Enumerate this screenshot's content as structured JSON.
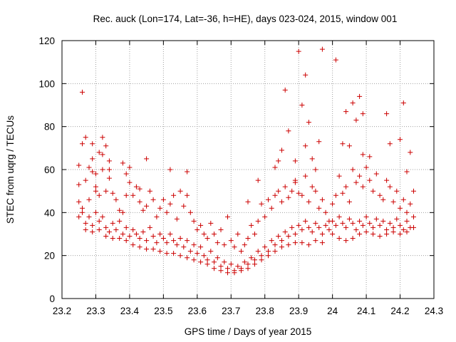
{
  "chart_data": {
    "type": "scatter",
    "title": "Rec. auck (Lon=174, Lat=-36, h=HE), days 023-024, 2015, window 001",
    "xlabel": "GPS time / Days of year 2015",
    "ylabel": "STEC from uqrg / TECUs",
    "xlim": [
      23.2,
      24.3
    ],
    "ylim": [
      0,
      120
    ],
    "xticks": [
      "23.2",
      "23.3",
      "23.4",
      "23.5",
      "23.6",
      "23.7",
      "23.8",
      "23.9",
      "24",
      "24.1",
      "24.2",
      "24.3"
    ],
    "yticks": [
      "0",
      "20",
      "40",
      "60",
      "80",
      "100",
      "120"
    ],
    "grid": true,
    "marker": "+",
    "marker_color": "#cc0000",
    "series": [
      {
        "name": "",
        "points": [
          [
            23.25,
            62
          ],
          [
            23.25,
            53
          ],
          [
            23.26,
            96
          ],
          [
            23.26,
            72
          ],
          [
            23.27,
            75
          ],
          [
            23.28,
            61
          ],
          [
            23.29,
            72
          ],
          [
            23.29,
            65
          ],
          [
            23.3,
            52
          ],
          [
            23.31,
            68
          ],
          [
            23.32,
            67
          ],
          [
            23.32,
            75
          ],
          [
            23.33,
            71
          ],
          [
            23.34,
            56
          ],
          [
            23.34,
            64
          ],
          [
            23.38,
            63
          ],
          [
            23.39,
            58
          ],
          [
            23.4,
            61
          ],
          [
            23.43,
            51
          ],
          [
            23.45,
            65
          ],
          [
            23.52,
            60
          ],
          [
            23.57,
            59
          ],
          [
            23.75,
            45
          ],
          [
            23.78,
            55
          ],
          [
            23.83,
            61
          ],
          [
            23.84,
            64
          ],
          [
            23.85,
            69
          ],
          [
            23.86,
            97
          ],
          [
            23.87,
            78
          ],
          [
            23.89,
            64
          ],
          [
            23.89,
            54
          ],
          [
            23.9,
            115
          ],
          [
            23.91,
            90
          ],
          [
            23.92,
            71
          ],
          [
            23.92,
            104
          ],
          [
            23.93,
            82
          ],
          [
            23.94,
            65
          ],
          [
            23.95,
            60
          ],
          [
            23.96,
            73
          ],
          [
            23.97,
            116
          ],
          [
            24.01,
            111
          ],
          [
            24.03,
            72
          ],
          [
            24.04,
            87
          ],
          [
            24.05,
            71
          ],
          [
            24.06,
            91
          ],
          [
            24.07,
            83
          ],
          [
            24.08,
            94
          ],
          [
            24.09,
            86
          ],
          [
            24.09,
            67
          ],
          [
            24.11,
            66
          ],
          [
            24.16,
            86
          ],
          [
            24.17,
            72
          ],
          [
            24.2,
            74
          ],
          [
            24.21,
            91
          ],
          [
            24.22,
            59
          ],
          [
            24.23,
            68
          ],
          [
            23.25,
            45
          ],
          [
            23.26,
            42
          ],
          [
            23.27,
            55
          ],
          [
            23.28,
            46
          ],
          [
            23.29,
            59
          ],
          [
            23.3,
            58
          ],
          [
            23.3,
            50
          ],
          [
            23.31,
            48
          ],
          [
            23.32,
            60
          ],
          [
            23.33,
            50
          ],
          [
            23.34,
            60
          ],
          [
            23.35,
            49
          ],
          [
            23.36,
            46
          ],
          [
            23.37,
            41
          ],
          [
            23.38,
            40
          ],
          [
            23.39,
            48
          ],
          [
            23.4,
            54
          ],
          [
            23.41,
            48
          ],
          [
            23.42,
            52
          ],
          [
            23.43,
            45
          ],
          [
            23.44,
            41
          ],
          [
            23.45,
            43
          ],
          [
            23.46,
            50
          ],
          [
            23.47,
            46
          ],
          [
            23.48,
            38
          ],
          [
            23.49,
            42
          ],
          [
            23.5,
            46
          ],
          [
            23.51,
            40
          ],
          [
            23.52,
            44
          ],
          [
            23.53,
            48
          ],
          [
            23.54,
            37
          ],
          [
            23.55,
            50
          ],
          [
            23.56,
            43
          ],
          [
            23.57,
            48
          ],
          [
            23.58,
            40
          ],
          [
            23.59,
            36
          ],
          [
            23.6,
            32
          ],
          [
            23.61,
            34
          ],
          [
            23.62,
            30
          ],
          [
            23.63,
            28
          ],
          [
            23.64,
            35
          ],
          [
            23.65,
            30
          ],
          [
            23.66,
            26
          ],
          [
            23.67,
            32
          ],
          [
            23.68,
            25
          ],
          [
            23.69,
            38
          ],
          [
            23.7,
            27
          ],
          [
            23.71,
            24
          ],
          [
            23.72,
            30
          ],
          [
            23.73,
            22
          ],
          [
            23.74,
            25
          ],
          [
            23.75,
            28
          ],
          [
            23.76,
            34
          ],
          [
            23.77,
            30
          ],
          [
            23.78,
            36
          ],
          [
            23.79,
            44
          ],
          [
            23.8,
            38
          ],
          [
            23.81,
            46
          ],
          [
            23.82,
            42
          ],
          [
            23.83,
            48
          ],
          [
            23.84,
            50
          ],
          [
            23.85,
            45
          ],
          [
            23.86,
            52
          ],
          [
            23.87,
            47
          ],
          [
            23.88,
            50
          ],
          [
            23.89,
            55
          ],
          [
            23.9,
            49
          ],
          [
            23.91,
            48
          ],
          [
            23.92,
            57
          ],
          [
            23.93,
            45
          ],
          [
            23.94,
            52
          ],
          [
            23.95,
            50
          ],
          [
            23.96,
            42
          ],
          [
            23.97,
            46
          ],
          [
            23.98,
            40
          ],
          [
            23.99,
            36
          ],
          [
            24.0,
            44
          ],
          [
            24.01,
            48
          ],
          [
            24.02,
            57
          ],
          [
            24.03,
            49
          ],
          [
            24.04,
            52
          ],
          [
            24.05,
            45
          ],
          [
            24.06,
            60
          ],
          [
            24.07,
            54
          ],
          [
            24.08,
            57
          ],
          [
            24.09,
            52
          ],
          [
            24.1,
            61
          ],
          [
            24.11,
            55
          ],
          [
            24.12,
            50
          ],
          [
            24.13,
            58
          ],
          [
            24.14,
            48
          ],
          [
            24.15,
            46
          ],
          [
            24.16,
            55
          ],
          [
            24.17,
            52
          ],
          [
            24.18,
            45
          ],
          [
            24.19,
            50
          ],
          [
            24.2,
            42
          ],
          [
            24.21,
            46
          ],
          [
            24.22,
            40
          ],
          [
            24.23,
            44
          ],
          [
            24.24,
            50
          ],
          [
            23.25,
            38
          ],
          [
            23.26,
            40
          ],
          [
            23.27,
            35
          ],
          [
            23.28,
            38
          ],
          [
            23.29,
            34
          ],
          [
            23.3,
            40
          ],
          [
            23.31,
            36
          ],
          [
            23.32,
            38
          ],
          [
            23.33,
            33
          ],
          [
            23.34,
            31
          ],
          [
            23.35,
            35
          ],
          [
            23.36,
            32
          ],
          [
            23.37,
            36
          ],
          [
            23.38,
            30
          ],
          [
            23.39,
            33
          ],
          [
            23.4,
            29
          ],
          [
            23.41,
            32
          ],
          [
            23.42,
            30
          ],
          [
            23.43,
            28
          ],
          [
            23.44,
            31
          ],
          [
            23.45,
            27
          ],
          [
            23.46,
            33
          ],
          [
            23.47,
            29
          ],
          [
            23.48,
            26
          ],
          [
            23.49,
            30
          ],
          [
            23.5,
            28
          ],
          [
            23.51,
            26
          ],
          [
            23.52,
            30
          ],
          [
            23.53,
            27
          ],
          [
            23.54,
            25
          ],
          [
            23.55,
            28
          ],
          [
            23.56,
            24
          ],
          [
            23.57,
            27
          ],
          [
            23.58,
            22
          ],
          [
            23.59,
            25
          ],
          [
            23.6,
            21
          ],
          [
            23.61,
            24
          ],
          [
            23.62,
            20
          ],
          [
            23.63,
            18
          ],
          [
            23.64,
            22
          ],
          [
            23.65,
            17
          ],
          [
            23.66,
            19
          ],
          [
            23.67,
            15
          ],
          [
            23.68,
            17
          ],
          [
            23.69,
            14
          ],
          [
            23.7,
            16
          ],
          [
            23.71,
            13
          ],
          [
            23.72,
            15
          ],
          [
            23.73,
            14
          ],
          [
            23.74,
            17
          ],
          [
            23.75,
            16
          ],
          [
            23.76,
            19
          ],
          [
            23.77,
            18
          ],
          [
            23.78,
            22
          ],
          [
            23.79,
            20
          ],
          [
            23.8,
            24
          ],
          [
            23.81,
            22
          ],
          [
            23.82,
            27
          ],
          [
            23.83,
            25
          ],
          [
            23.84,
            29
          ],
          [
            23.85,
            27
          ],
          [
            23.86,
            31
          ],
          [
            23.87,
            29
          ],
          [
            23.88,
            33
          ],
          [
            23.89,
            30
          ],
          [
            23.9,
            34
          ],
          [
            23.91,
            32
          ],
          [
            23.92,
            36
          ],
          [
            23.93,
            33
          ],
          [
            23.94,
            31
          ],
          [
            23.95,
            35
          ],
          [
            23.96,
            33
          ],
          [
            23.97,
            30
          ],
          [
            23.98,
            34
          ],
          [
            23.99,
            32
          ],
          [
            24.0,
            36
          ],
          [
            24.01,
            34
          ],
          [
            24.02,
            38
          ],
          [
            24.03,
            35
          ],
          [
            24.04,
            33
          ],
          [
            24.05,
            37
          ],
          [
            24.06,
            35
          ],
          [
            24.07,
            32
          ],
          [
            24.08,
            36
          ],
          [
            24.09,
            34
          ],
          [
            24.1,
            38
          ],
          [
            24.11,
            35
          ],
          [
            24.12,
            33
          ],
          [
            24.13,
            37
          ],
          [
            24.14,
            34
          ],
          [
            24.15,
            36
          ],
          [
            24.16,
            32
          ],
          [
            24.17,
            35
          ],
          [
            24.18,
            33
          ],
          [
            24.19,
            37
          ],
          [
            24.2,
            34
          ],
          [
            24.21,
            32
          ],
          [
            24.22,
            36
          ],
          [
            24.23,
            33
          ],
          [
            24.24,
            38
          ],
          [
            23.27,
            32
          ],
          [
            23.29,
            31
          ],
          [
            23.31,
            32
          ],
          [
            23.33,
            29
          ],
          [
            23.35,
            28
          ],
          [
            23.37,
            28
          ],
          [
            23.39,
            27
          ],
          [
            23.41,
            25
          ],
          [
            23.43,
            24
          ],
          [
            23.45,
            23
          ],
          [
            23.47,
            23
          ],
          [
            23.49,
            22
          ],
          [
            23.51,
            21
          ],
          [
            23.53,
            21
          ],
          [
            23.55,
            20
          ],
          [
            23.57,
            19
          ],
          [
            23.59,
            18
          ],
          [
            23.61,
            17
          ],
          [
            23.63,
            16
          ],
          [
            23.65,
            14
          ],
          [
            23.67,
            13
          ],
          [
            23.69,
            12
          ],
          [
            23.71,
            12
          ],
          [
            23.73,
            13
          ],
          [
            23.75,
            14
          ],
          [
            23.77,
            16
          ],
          [
            23.79,
            18
          ],
          [
            23.81,
            20
          ],
          [
            23.83,
            22
          ],
          [
            23.85,
            24
          ],
          [
            23.87,
            25
          ],
          [
            23.89,
            26
          ],
          [
            23.91,
            26
          ],
          [
            23.93,
            25
          ],
          [
            23.95,
            27
          ],
          [
            23.97,
            26
          ],
          [
            24.0,
            30
          ],
          [
            24.02,
            28
          ],
          [
            24.04,
            27
          ],
          [
            24.06,
            28
          ],
          [
            24.08,
            30
          ],
          [
            24.1,
            31
          ],
          [
            24.12,
            30
          ],
          [
            24.14,
            29
          ],
          [
            24.16,
            30
          ],
          [
            24.18,
            31
          ],
          [
            24.2,
            30
          ],
          [
            24.22,
            31
          ],
          [
            24.24,
            33
          ]
        ]
      }
    ]
  }
}
